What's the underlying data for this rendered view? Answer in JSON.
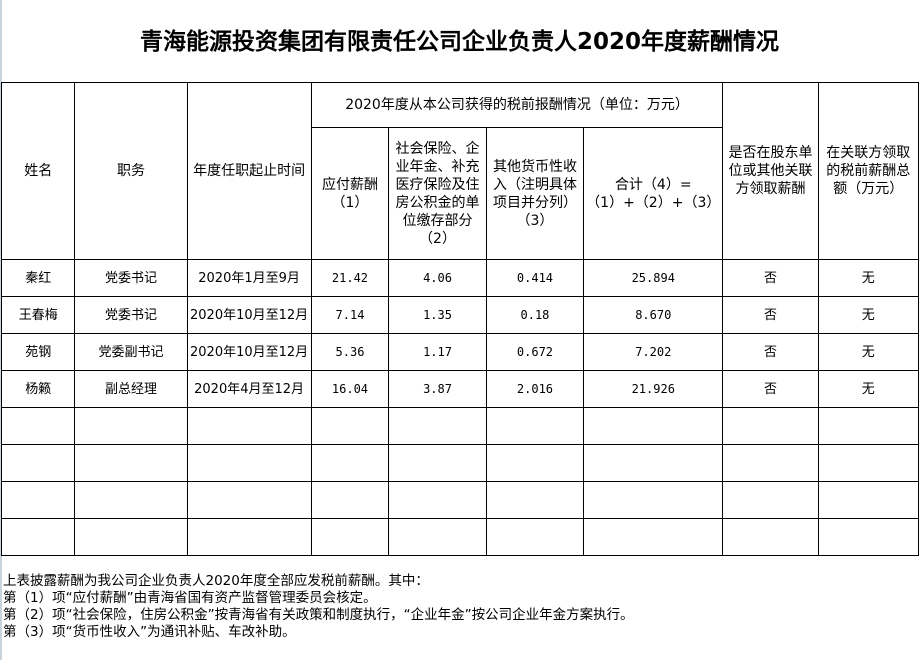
{
  "title": "青海能源投资集团有限责任公司企业负责人2020年度薪酬情况",
  "headers": {
    "name": "姓名",
    "position": "职务",
    "term": "年度任职起止时间",
    "group": "2020年度从本公司获得的税前报酬情况（单位：万元）",
    "salary": "应付薪酬（1）",
    "insurance": "社会保险、企业年金、补充医疗保险及住房公积金的单位缴存部分（2）",
    "other": "其他货币性收入（注明具体项目并分列）（3）",
    "total": "合计（4）=（1）+（2）+（3）",
    "shareholder": "是否在股东单位或其他关联方领取薪酬",
    "related": "在关联方领取的税前薪酬总额（万元）"
  },
  "rows": [
    {
      "name": "秦红",
      "position": "党委书记",
      "term": "2020年1月至9月",
      "salary": "21.42",
      "insurance": "4.06",
      "other": "0.414",
      "total": "25.894",
      "shareholder": "否",
      "related": "无"
    },
    {
      "name": "王春梅",
      "position": "党委书记",
      "term": "2020年10月至12月",
      "salary": "7.14",
      "insurance": "1.35",
      "other": "0.18",
      "total": "8.670",
      "shareholder": "否",
      "related": "无"
    },
    {
      "name": "苑钢",
      "position": "党委副书记",
      "term": "2020年10月至12月",
      "salary": "5.36",
      "insurance": "1.17",
      "other": "0.672",
      "total": "7.202",
      "shareholder": "否",
      "related": "无"
    },
    {
      "name": "杨籁",
      "position": "副总经理",
      "term": "2020年4月至12月",
      "salary": "16.04",
      "insurance": "3.87",
      "other": "2.016",
      "total": "21.926",
      "shareholder": "否",
      "related": "无"
    }
  ],
  "notes": [
    "上表披露薪酬为我公司企业负责人2020年度全部应发税前薪酬。其中：",
    "第（1）项“应付薪酬”由青海省国有资产监督管理委员会核定。",
    "第（2）项“社会保险，住房公积金”按青海省有关政策和制度执行，“企业年金”按公司企业年金方案执行。",
    "第（3）项“货币性收入”为通讯补贴、车改补助。"
  ]
}
